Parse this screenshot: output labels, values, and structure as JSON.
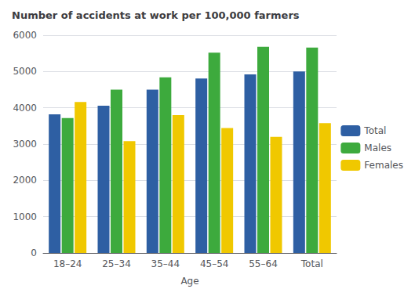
{
  "chart_data": {
    "type": "bar",
    "title": "Number of accidents at work per 100,000 farmers",
    "xlabel": "Age",
    "categories": [
      "18–24",
      "25–34",
      "35–44",
      "45–54",
      "55–64",
      "Total"
    ],
    "series": [
      {
        "name": "Total",
        "color": "#2e5fa3",
        "values": [
          3820,
          4060,
          4500,
          4810,
          4920,
          5000
        ]
      },
      {
        "name": "Males",
        "color": "#3daa3d",
        "values": [
          3720,
          4500,
          4840,
          5520,
          5680,
          5660
        ]
      },
      {
        "name": "Females",
        "color": "#f0c800",
        "values": [
          4160,
          3080,
          3800,
          3440,
          3200,
          3580
        ]
      }
    ],
    "ylim": [
      0,
      6000
    ],
    "yticks": [
      0,
      1000,
      2000,
      3000,
      4000,
      5000,
      6000
    ],
    "grid": true,
    "legend": "right"
  }
}
